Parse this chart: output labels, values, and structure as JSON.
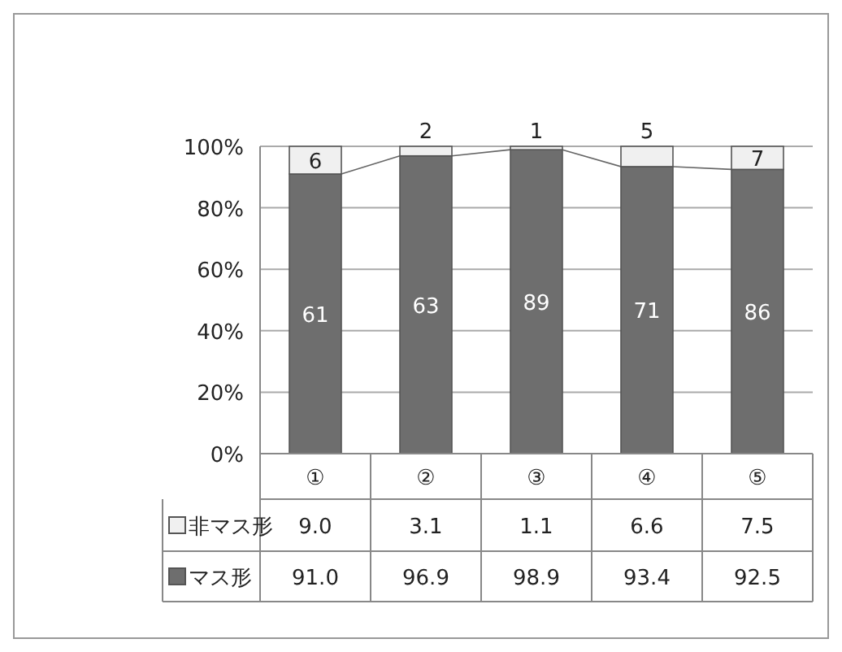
{
  "chart_data": {
    "type": "bar",
    "stacked": true,
    "categories": [
      "①",
      "②",
      "③",
      "④",
      "⑤"
    ],
    "series": [
      {
        "name": "マス形",
        "color": "#6e6e6e",
        "values": [
          91.0,
          96.9,
          98.9,
          93.4,
          92.5
        ],
        "value_labels": [
          "91.0",
          "96.9",
          "98.9",
          "93.4",
          "92.5"
        ]
      },
      {
        "name": "非マス形",
        "color": "#f0f0f0",
        "values": [
          9.0,
          3.1,
          1.1,
          6.6,
          7.5
        ],
        "value_labels": [
          "9.0",
          "3.1",
          "1.1",
          "6.6",
          "7.5"
        ]
      }
    ],
    "ylim": [
      0,
      100
    ],
    "yticks": [
      {
        "value": 0,
        "label": "0%"
      },
      {
        "value": 20,
        "label": "20%"
      },
      {
        "value": 40,
        "label": "40%"
      },
      {
        "value": 60,
        "label": "60%"
      },
      {
        "value": 80,
        "label": "80%"
      },
      {
        "value": 100,
        "label": "100%"
      }
    ],
    "grid": "y",
    "legend": "bottom",
    "annotations": [
      "61",
      "63",
      "89",
      "71",
      "86",
      {
        "text": "6",
        "x": "①",
        "y": 100
      },
      {
        "text": "2",
        "x": "②",
        "y": 100
      },
      {
        "text": "1",
        "x": "③",
        "y": 100
      },
      {
        "text": "5",
        "x": "④",
        "y": 100
      },
      {
        "text": "7",
        "x": "⑤",
        "y": 100
      }
    ]
  }
}
